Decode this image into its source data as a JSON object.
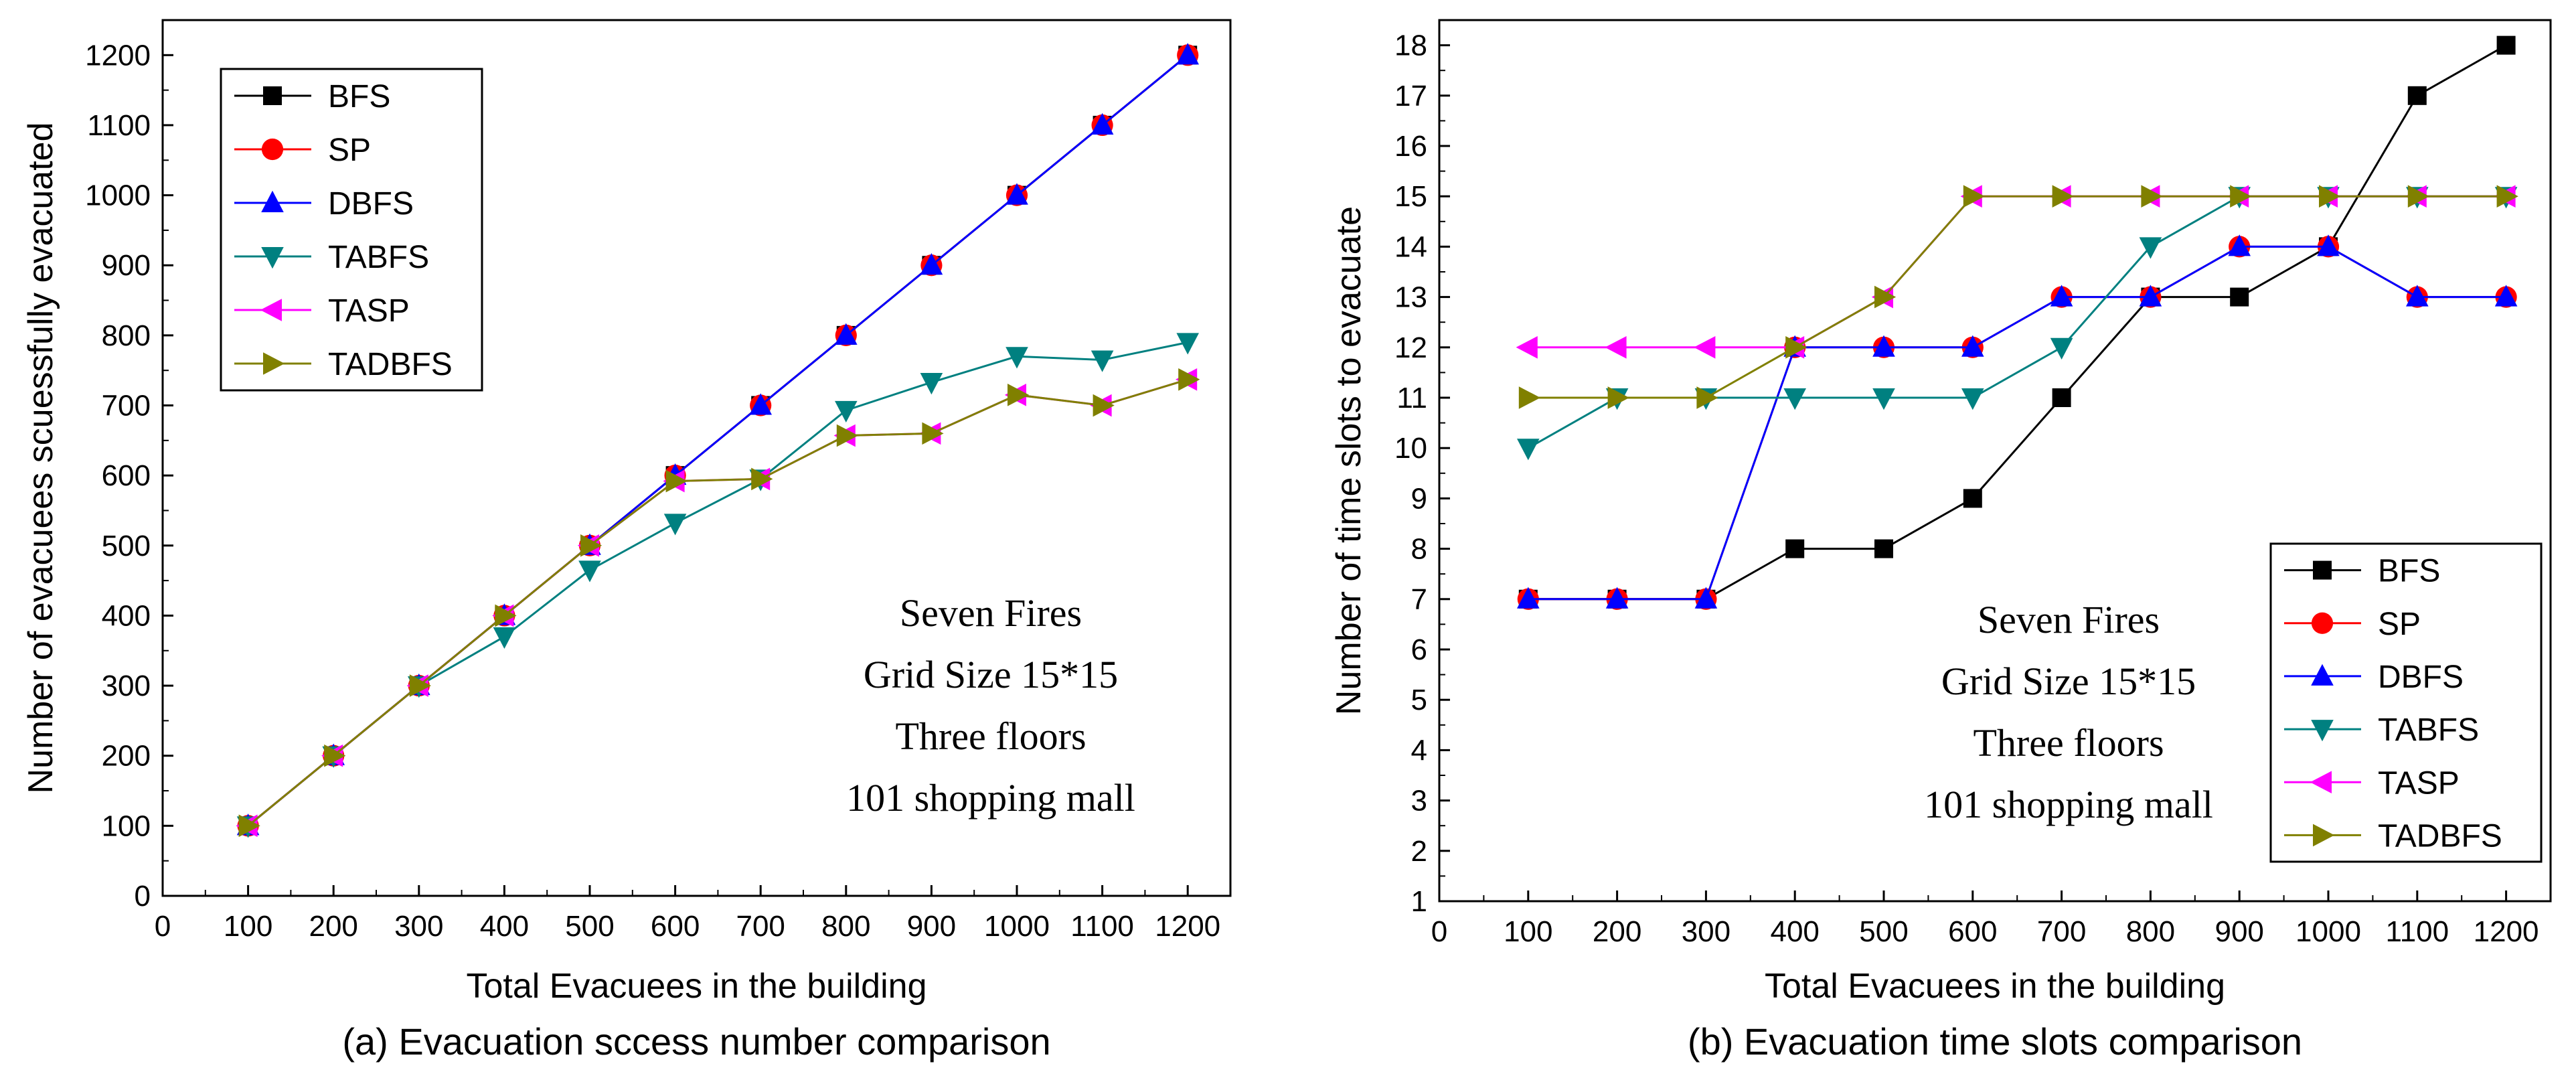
{
  "chart_data": [
    {
      "type": "line",
      "caption": "(a) Evacuation sccess number comparison",
      "xlabel": "Total Evacuees in the building",
      "ylabel": "Number of evacuees scuessfully evacuated",
      "xlim": [
        0,
        1250
      ],
      "ylim": [
        0,
        1250
      ],
      "x_ticks": [
        0,
        100,
        200,
        300,
        400,
        500,
        600,
        700,
        800,
        900,
        1000,
        1100,
        1200
      ],
      "y_ticks": [
        0,
        100,
        200,
        300,
        400,
        500,
        600,
        700,
        800,
        900,
        1000,
        1100,
        1200
      ],
      "x": [
        100,
        200,
        300,
        400,
        500,
        600,
        700,
        800,
        900,
        1000,
        1100,
        1200
      ],
      "legend_position": "top-left",
      "annotation": [
        "Seven Fires",
        "Grid Size 15*15",
        "Three floors",
        "101 shopping mall"
      ],
      "series": [
        {
          "name": "BFS",
          "color": "#000000",
          "marker": "square",
          "values": [
            100,
            200,
            300,
            400,
            500,
            600,
            700,
            800,
            900,
            1000,
            1100,
            1200
          ]
        },
        {
          "name": "SP",
          "color": "#ff0000",
          "marker": "circle",
          "values": [
            100,
            200,
            300,
            400,
            500,
            600,
            700,
            800,
            900,
            1000,
            1100,
            1200
          ]
        },
        {
          "name": "DBFS",
          "color": "#0000ff",
          "marker": "triangle-up",
          "values": [
            100,
            200,
            300,
            400,
            500,
            600,
            700,
            800,
            900,
            1000,
            1100,
            1200
          ]
        },
        {
          "name": "TABFS",
          "color": "#008080",
          "marker": "triangle-down",
          "values": [
            100,
            200,
            300,
            370,
            465,
            532,
            595,
            693,
            733,
            770,
            765,
            790
          ]
        },
        {
          "name": "TASP",
          "color": "#ff00ff",
          "marker": "triangle-left",
          "values": [
            100,
            200,
            300,
            400,
            500,
            592,
            595,
            657,
            660,
            715,
            700,
            737
          ]
        },
        {
          "name": "TADBFS",
          "color": "#808000",
          "marker": "triangle-right",
          "values": [
            100,
            200,
            300,
            400,
            500,
            592,
            595,
            657,
            660,
            715,
            700,
            737
          ]
        }
      ]
    },
    {
      "type": "line",
      "caption": "(b) Evacuation time slots comparison",
      "xlabel": "Total Evacuees in the building",
      "ylabel": "Number of time slots to evacuate",
      "xlim": [
        0,
        1250
      ],
      "ylim": [
        1,
        18.5
      ],
      "x_ticks": [
        0,
        100,
        200,
        300,
        400,
        500,
        600,
        700,
        800,
        900,
        1000,
        1100,
        1200
      ],
      "y_ticks": [
        1,
        2,
        3,
        4,
        5,
        6,
        7,
        8,
        9,
        10,
        11,
        12,
        13,
        14,
        15,
        16,
        17,
        18
      ],
      "x": [
        100,
        200,
        300,
        400,
        500,
        600,
        700,
        800,
        900,
        1000,
        1100,
        1200
      ],
      "legend_position": "bottom-right",
      "annotation": [
        "Seven Fires",
        "Grid Size 15*15",
        "Three floors",
        "101 shopping mall"
      ],
      "series": [
        {
          "name": "BFS",
          "color": "#000000",
          "marker": "square",
          "values": [
            7,
            7,
            7,
            8,
            8,
            9,
            11,
            13,
            13,
            14,
            17,
            18
          ]
        },
        {
          "name": "SP",
          "color": "#ff0000",
          "marker": "circle",
          "values": [
            7,
            7,
            7,
            12,
            12,
            12,
            13,
            13,
            14,
            14,
            13,
            13
          ]
        },
        {
          "name": "DBFS",
          "color": "#0000ff",
          "marker": "triangle-up",
          "values": [
            7,
            7,
            7,
            12,
            12,
            12,
            13,
            13,
            14,
            14,
            13,
            13
          ]
        },
        {
          "name": "TABFS",
          "color": "#008080",
          "marker": "triangle-down",
          "values": [
            10,
            11,
            11,
            11,
            11,
            11,
            12,
            14,
            15,
            15,
            15,
            15
          ]
        },
        {
          "name": "TASP",
          "color": "#ff00ff",
          "marker": "triangle-left",
          "values": [
            12,
            12,
            12,
            12,
            13,
            15,
            15,
            15,
            15,
            15,
            15,
            15
          ]
        },
        {
          "name": "TADBFS",
          "color": "#808000",
          "marker": "triangle-right",
          "values": [
            11,
            11,
            11,
            12,
            13,
            15,
            15,
            15,
            15,
            15,
            15,
            15
          ]
        }
      ]
    }
  ]
}
